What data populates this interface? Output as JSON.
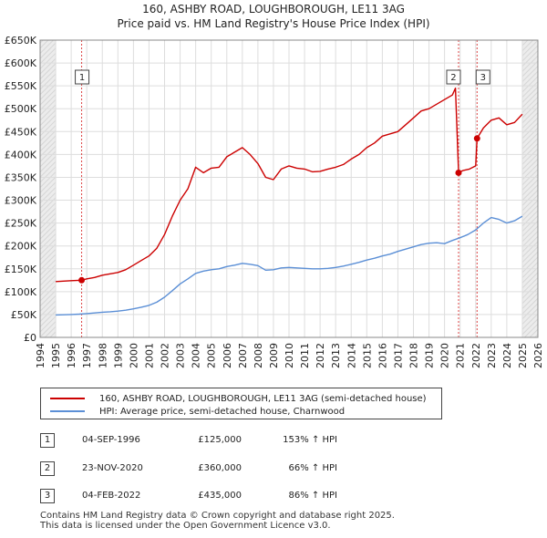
{
  "chart_data": {
    "type": "line",
    "title": "160, ASHBY ROAD, LOUGHBOROUGH, LE11 3AG",
    "subtitle": "Price paid vs. HM Land Registry's House Price Index (HPI)",
    "xlim": [
      1994,
      2026
    ],
    "ylim": [
      0,
      650000
    ],
    "x_ticks": [
      1994,
      1995,
      1996,
      1997,
      1998,
      1999,
      2000,
      2001,
      2002,
      2003,
      2004,
      2005,
      2006,
      2007,
      2008,
      2009,
      2010,
      2011,
      2012,
      2013,
      2014,
      2015,
      2016,
      2017,
      2018,
      2019,
      2020,
      2021,
      2022,
      2023,
      2024,
      2025,
      2026
    ],
    "y_ticks": [
      0,
      50000,
      100000,
      150000,
      200000,
      250000,
      300000,
      350000,
      400000,
      450000,
      500000,
      550000,
      600000,
      650000
    ],
    "y_tick_labels": [
      "£0",
      "£50K",
      "£100K",
      "£150K",
      "£200K",
      "£250K",
      "£300K",
      "£350K",
      "£400K",
      "£450K",
      "£500K",
      "£550K",
      "£600K",
      "£650K"
    ],
    "grid": true,
    "series": [
      {
        "name": "160, ASHBY ROAD, LOUGHBOROUGH, LE11 3AG (semi-detached house)",
        "color": "#cc0000",
        "x": [
          1995.0,
          1995.5,
          1996.0,
          1996.67,
          1997.0,
          1997.5,
          1998.0,
          1998.5,
          1999.0,
          1999.5,
          2000.0,
          2000.5,
          2001.0,
          2001.5,
          2002.0,
          2002.5,
          2003.0,
          2003.5,
          2004.0,
          2004.5,
          2005.0,
          2005.5,
          2006.0,
          2006.5,
          2007.0,
          2007.5,
          2008.0,
          2008.5,
          2009.0,
          2009.5,
          2010.0,
          2010.5,
          2011.0,
          2011.5,
          2012.0,
          2012.5,
          2013.0,
          2013.5,
          2014.0,
          2014.5,
          2015.0,
          2015.5,
          2016.0,
          2016.5,
          2017.0,
          2017.5,
          2018.0,
          2018.5,
          2019.0,
          2019.5,
          2020.0,
          2020.5,
          2020.7,
          2020.9,
          2021.2,
          2021.6,
          2022.0,
          2022.09,
          2022.5,
          2023.0,
          2023.5,
          2024.0,
          2024.5,
          2025.0
        ],
        "values": [
          122000,
          123000,
          124000,
          125000,
          128000,
          131000,
          136000,
          139000,
          142000,
          148000,
          158000,
          168000,
          178000,
          195000,
          225000,
          265000,
          300000,
          325000,
          372000,
          360000,
          370000,
          372000,
          395000,
          405000,
          415000,
          400000,
          380000,
          350000,
          345000,
          368000,
          375000,
          370000,
          368000,
          362000,
          363000,
          368000,
          372000,
          378000,
          390000,
          400000,
          415000,
          425000,
          440000,
          445000,
          450000,
          465000,
          480000,
          495000,
          500000,
          510000,
          520000,
          530000,
          545000,
          360000,
          365000,
          368000,
          375000,
          435000,
          458000,
          475000,
          480000,
          465000,
          470000,
          488000
        ]
      },
      {
        "name": "HPI: Average price, semi-detached house, Charnwood",
        "color": "#5b8fd6",
        "x": [
          1995.0,
          1995.5,
          1996.0,
          1996.5,
          1997.0,
          1997.5,
          1998.0,
          1998.5,
          1999.0,
          1999.5,
          2000.0,
          2000.5,
          2001.0,
          2001.5,
          2002.0,
          2002.5,
          2003.0,
          2003.5,
          2004.0,
          2004.5,
          2005.0,
          2005.5,
          2006.0,
          2006.5,
          2007.0,
          2007.5,
          2008.0,
          2008.5,
          2009.0,
          2009.5,
          2010.0,
          2010.5,
          2011.0,
          2011.5,
          2012.0,
          2012.5,
          2013.0,
          2013.5,
          2014.0,
          2014.5,
          2015.0,
          2015.5,
          2016.0,
          2016.5,
          2017.0,
          2017.5,
          2018.0,
          2018.5,
          2019.0,
          2019.5,
          2020.0,
          2020.5,
          2021.0,
          2021.5,
          2022.0,
          2022.5,
          2023.0,
          2023.5,
          2024.0,
          2024.5,
          2025.0
        ],
        "values": [
          49000,
          49500,
          50000,
          50800,
          52000,
          53500,
          55000,
          56000,
          57500,
          59500,
          62500,
          66000,
          70000,
          77000,
          88000,
          102000,
          117000,
          128000,
          140000,
          145000,
          148000,
          150000,
          155000,
          158000,
          162000,
          160000,
          157000,
          147000,
          148000,
          152000,
          153000,
          152000,
          151000,
          150000,
          150000,
          151000,
          153000,
          156000,
          160000,
          164000,
          169000,
          173000,
          178000,
          182000,
          188000,
          193000,
          198000,
          203000,
          206000,
          207000,
          205000,
          212000,
          218000,
          225000,
          235000,
          250000,
          262000,
          258000,
          250000,
          255000,
          265000
        ]
      }
    ],
    "sales": [
      {
        "label": "1",
        "x": 1996.67,
        "value": 125000
      },
      {
        "label": "2",
        "x": 2020.9,
        "value": 360000
      },
      {
        "label": "3",
        "x": 2022.09,
        "value": 435000
      }
    ],
    "shaded_ranges": [
      [
        1994,
        1995
      ],
      [
        2025,
        2026
      ]
    ]
  },
  "legend": {
    "sales_label": "160, ASHBY ROAD, LOUGHBOROUGH, LE11 3AG (semi-detached house)",
    "hpi_label": "HPI: Average price, semi-detached house, Charnwood",
    "sales_color": "#cc0000",
    "hpi_color": "#5b8fd6"
  },
  "sales_table": [
    {
      "marker": "1",
      "date": "04-SEP-1996",
      "price": "£125,000",
      "hpi": "153% ↑ HPI"
    },
    {
      "marker": "2",
      "date": "23-NOV-2020",
      "price": "£360,000",
      "hpi": "66% ↑ HPI"
    },
    {
      "marker": "3",
      "date": "04-FEB-2022",
      "price": "£435,000",
      "hpi": "86% ↑ HPI"
    }
  ],
  "footer": {
    "line1": "Contains HM Land Registry data © Crown copyright and database right 2025.",
    "line2": "This data is licensed under the Open Government Licence v3.0."
  }
}
